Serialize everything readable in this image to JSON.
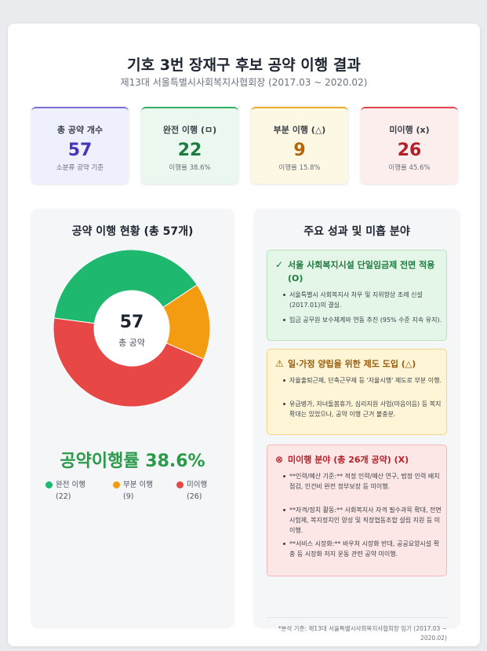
{
  "header": {
    "title": "기호 3번 장재구 후보 공약 이행 결과",
    "subtitle": "제13대 서울특별시사회복지사협회장 (2017.03 ~ 2020.02)"
  },
  "stats": [
    {
      "label": "총 공약 개수",
      "value": "57",
      "sub": "소분류 공약 기준"
    },
    {
      "label": "완전 이행 (ㅁ)",
      "value": "22",
      "sub": "이행율 38.6%"
    },
    {
      "label": "부분 이행 (△)",
      "value": "9",
      "sub": "이행율 15.8%"
    },
    {
      "label": "미이행 (x)",
      "value": "26",
      "sub": "이행율 45.6%"
    }
  ],
  "left_panel": {
    "title": "공약 이행 현황 (총 57개)",
    "center_value": "57",
    "center_label": "총 공약",
    "rate": "공약이행률 38.6%",
    "legend": [
      {
        "label": "완전 이행",
        "count": "(22)",
        "color": "#1eb86e"
      },
      {
        "label": "부분 이행",
        "count": "(9)",
        "color": "#f39c12"
      },
      {
        "label": "미이행",
        "count": "(26)",
        "color": "#e74745"
      }
    ]
  },
  "chart_data": {
    "type": "pie",
    "categories": [
      "완전 이행",
      "부분 이행",
      "미이행"
    ],
    "values": [
      22,
      9,
      26
    ],
    "colors": [
      "#1eb86e",
      "#f39c12",
      "#e74745"
    ],
    "title": "공약 이행 현황 (총 57개)"
  },
  "right_panel": {
    "title": "주요 성과 및 미흡 분야",
    "boxes": [
      {
        "icon": "✓",
        "title": "서울 사회복지시설 단일임금제 전면 적용 (O)",
        "bullets": [
          "서울특별시 사회복지사 처우 및 지위향상 조례 신설(2017.01)의 결실.",
          "임금 공무원 보수체계와 연동 추진 (95% 수준 지속 유지)."
        ]
      },
      {
        "icon": "⚠",
        "title": "일·가정 양립을 위한 제도 도입 (△)",
        "bullets": [
          "자율출퇴근제, 단축근무제 등 '자율시행' 제도로 부분 이행.",
          "유급병가, 자녀돌봄휴가, 심리지원 사업(마음이음) 등 복지 확대는 있었으나, 공약 이행 근거 불충분."
        ]
      },
      {
        "icon": "⊗",
        "title": "미이행 분야 (총 26개 공약) (X)",
        "bullets": [
          "**인력/예산 기준:** 적정 인력/예산 연구, 법정 인력 배치 점검, 인건비 완전 정부보장 등 미이행.",
          "**자격/정치 활동:** 사회복지사 자격 필수과목 확대, 전면 시험제, 복지정치인 양성 및 직장협동조합 설립 지원 등 미이행.",
          "**서비스 시장화:** 바우처 시장화 반대, 공공요양시설 확충 등 시장화 저지 운동 관련 공약 미이행."
        ]
      }
    ],
    "footnote": "*분석 기준: 제13대 서울특별시사회복지사협회장 임기 (2017.03 ~ 2020.02)"
  }
}
